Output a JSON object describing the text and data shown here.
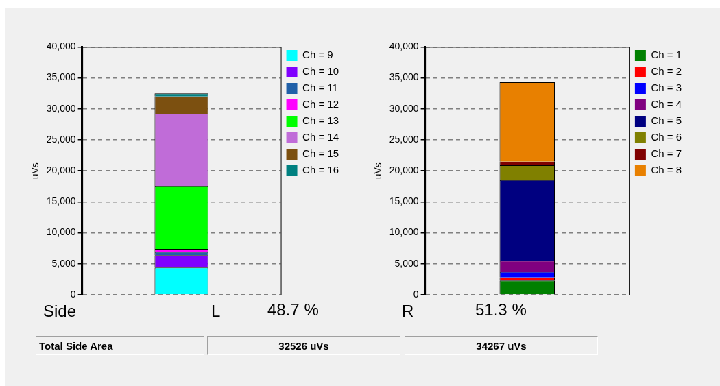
{
  "chart_data": [
    {
      "type": "bar",
      "stacked": true,
      "categories": [
        null
      ],
      "ylabel": "uVs",
      "ylim": [
        0,
        40000
      ],
      "yticks": [
        0,
        {
          "value": 5000,
          "label": "5,000"
        },
        {
          "value": 10000,
          "label": "10,000"
        },
        {
          "value": 15000,
          "label": "15,000"
        },
        {
          "value": 20000,
          "label": "20,000"
        },
        {
          "value": 25000,
          "label": "25,000"
        },
        {
          "value": 30000,
          "label": "30,000"
        },
        {
          "value": 35000,
          "label": "35,000"
        },
        {
          "value": 40000,
          "label": "40,000"
        }
      ],
      "grid": "y",
      "legend": "right",
      "series": [
        {
          "name": "Ch = 9",
          "color": "#00ffff",
          "values": [
            4400
          ]
        },
        {
          "name": "Ch = 10",
          "color": "#8000ff",
          "values": [
            2000
          ]
        },
        {
          "name": "Ch = 11",
          "color": "#2060a8",
          "values": [
            500
          ]
        },
        {
          "name": "Ch = 12",
          "color": "#ff00ff",
          "values": [
            500
          ]
        },
        {
          "name": "Ch = 13",
          "color": "#00ff00",
          "values": [
            10100
          ]
        },
        {
          "name": "Ch = 14",
          "color": "#c06cd8",
          "values": [
            11700
          ]
        },
        {
          "name": "Ch = 15",
          "color": "#7c5010",
          "values": [
            2800
          ]
        },
        {
          "name": "Ch = 16",
          "color": "#008080",
          "values": [
            500
          ]
        }
      ],
      "annotations": [
        "Side",
        "L",
        "48.7 %",
        "Total Side Area",
        "32526 uVs"
      ]
    },
    {
      "type": "bar",
      "stacked": true,
      "categories": [
        null
      ],
      "ylabel": "uVs",
      "ylim": [
        0,
        40000
      ],
      "yticks": [
        0,
        {
          "value": 5000,
          "label": "5,000"
        },
        {
          "value": 10000,
          "label": "10,000"
        },
        {
          "value": 15000,
          "label": "15,000"
        },
        {
          "value": 20000,
          "label": "20,000"
        },
        {
          "value": 25000,
          "label": "25,000"
        },
        {
          "value": 30000,
          "label": "30,000"
        },
        {
          "value": 35000,
          "label": "35,000"
        },
        {
          "value": 40000,
          "label": "40,000"
        }
      ],
      "grid": "y",
      "legend": "right",
      "series": [
        {
          "name": "Ch = 1",
          "color": "#008000",
          "values": [
            2300
          ]
        },
        {
          "name": "Ch = 2",
          "color": "#ff0000",
          "values": [
            500
          ]
        },
        {
          "name": "Ch = 3",
          "color": "#0000ff",
          "values": [
            900
          ]
        },
        {
          "name": "Ch = 4",
          "color": "#800080",
          "values": [
            1800
          ]
        },
        {
          "name": "Ch = 5",
          "color": "#000080",
          "values": [
            13000
          ]
        },
        {
          "name": "Ch = 6",
          "color": "#808000",
          "values": [
            2400
          ]
        },
        {
          "name": "Ch = 7",
          "color": "#800000",
          "values": [
            600
          ]
        },
        {
          "name": "Ch = 8",
          "color": "#e88000",
          "values": [
            12800
          ]
        }
      ],
      "annotations": [
        "R",
        "51.3 %",
        "34267 uVs"
      ]
    }
  ]
}
